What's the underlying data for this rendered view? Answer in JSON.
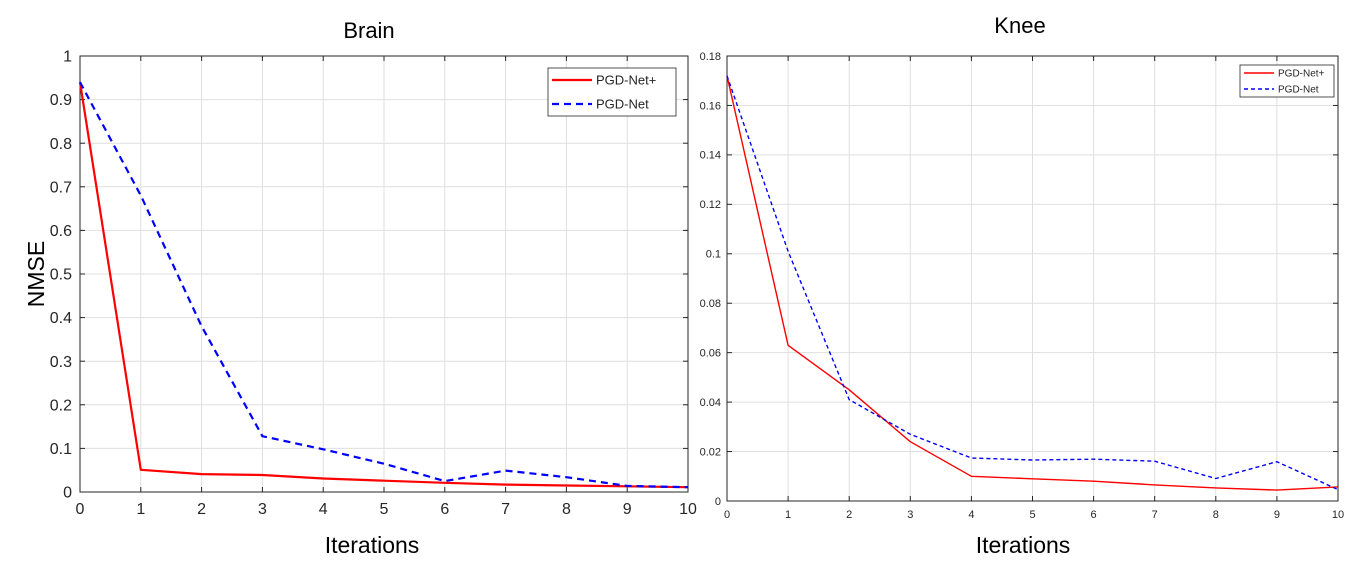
{
  "chart_data": [
    {
      "type": "line",
      "title": "Brain",
      "xlabel": "Iterations",
      "ylabel": "NMSE",
      "xlim": [
        0,
        10
      ],
      "ylim": [
        0,
        1
      ],
      "xticks": [
        0,
        1,
        2,
        3,
        4,
        5,
        6,
        7,
        8,
        9,
        10
      ],
      "yticks": [
        0,
        0.1,
        0.2,
        0.3,
        0.4,
        0.5,
        0.6,
        0.7,
        0.8,
        0.9,
        1
      ],
      "grid": true,
      "legend_position": "top-right",
      "x": [
        0,
        1,
        2,
        3,
        4,
        5,
        6,
        7,
        8,
        9,
        10
      ],
      "series": [
        {
          "name": "PGD-Net+",
          "color": "#ff0000",
          "style": "solid",
          "values": [
            0.94,
            0.051,
            0.041,
            0.039,
            0.031,
            0.026,
            0.021,
            0.017,
            0.015,
            0.013,
            0.011
          ]
        },
        {
          "name": "PGD-Net",
          "color": "#0000ff",
          "style": "dashed",
          "values": [
            0.94,
            0.68,
            0.38,
            0.128,
            0.098,
            0.065,
            0.025,
            0.049,
            0.034,
            0.014,
            0.011
          ]
        }
      ]
    },
    {
      "type": "line",
      "title": "Knee",
      "xlabel": "Iterations",
      "ylabel": "",
      "xlim": [
        0,
        10
      ],
      "ylim": [
        0,
        0.18
      ],
      "xticks": [
        0,
        1,
        2,
        3,
        4,
        5,
        6,
        7,
        8,
        9,
        10
      ],
      "yticks": [
        0,
        0.02,
        0.04,
        0.06,
        0.08,
        0.1,
        0.12,
        0.14,
        0.16,
        0.18
      ],
      "grid": true,
      "legend_position": "top-right",
      "x": [
        0,
        1,
        2,
        3,
        4,
        5,
        6,
        7,
        8,
        9,
        10
      ],
      "series": [
        {
          "name": "PGD-Net+",
          "color": "#ff0000",
          "style": "solid",
          "values": [
            0.172,
            0.063,
            0.045,
            0.024,
            0.01,
            0.009,
            0.008,
            0.0065,
            0.0053,
            0.0044,
            0.0057
          ]
        },
        {
          "name": "PGD-Net",
          "color": "#0000ff",
          "style": "dashed",
          "values": [
            0.172,
            0.101,
            0.041,
            0.027,
            0.0174,
            0.0166,
            0.0169,
            0.0161,
            0.0091,
            0.0159,
            0.0046
          ]
        }
      ]
    }
  ]
}
